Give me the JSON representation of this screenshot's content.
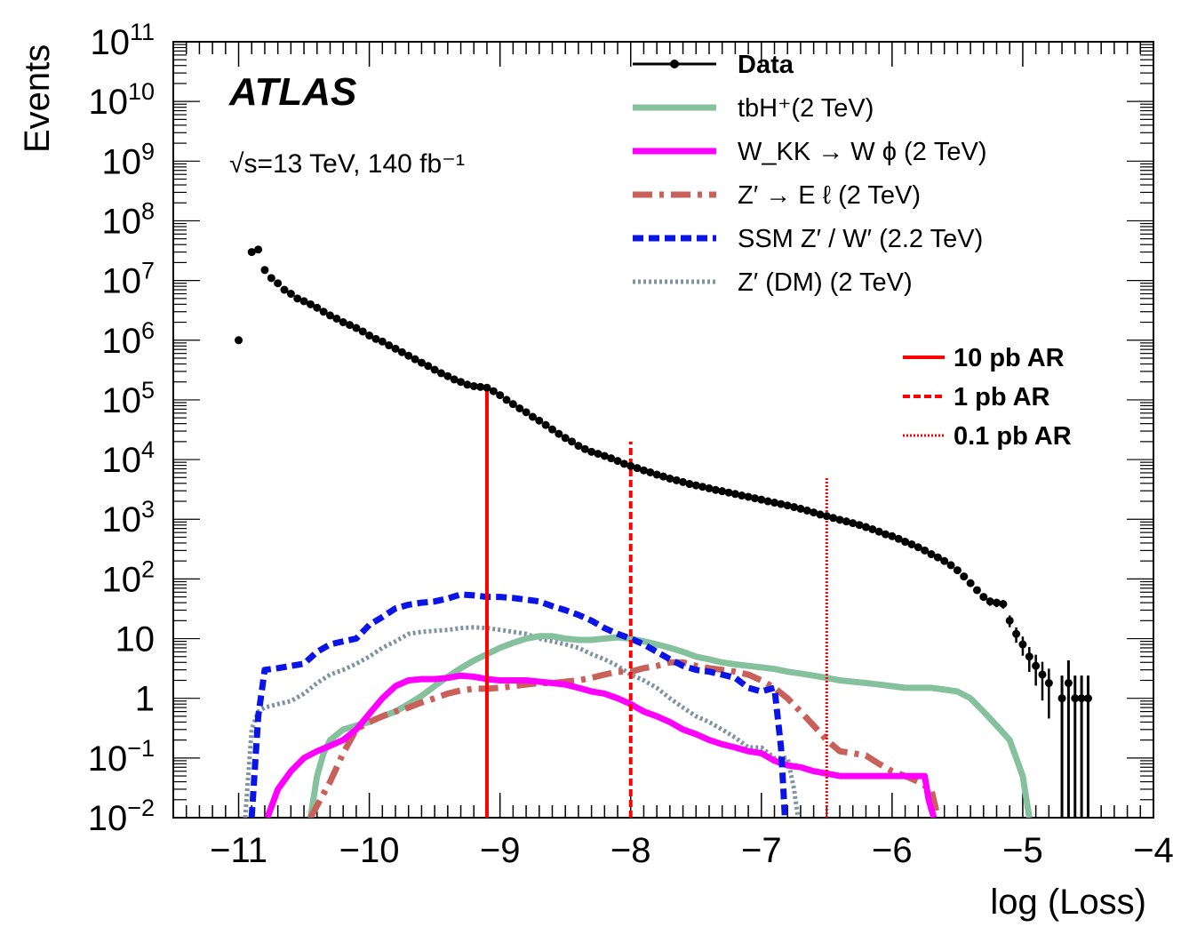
{
  "chart_data": {
    "type": "line",
    "experiment": "ATLAS",
    "lumi_text": "√s=13 TeV,  140 fb⁻¹",
    "xlabel": "log (Loss)",
    "ylabel": "Events",
    "xlim": [
      -11.5,
      -4
    ],
    "ylim": [
      0.01,
      100000000000
    ],
    "yscale": "log",
    "x_tick_labels": [
      "−11",
      "−10",
      "−9",
      "−8",
      "−7",
      "−6",
      "−5",
      "−4"
    ],
    "y_tick_labels": [
      {
        "base": "10",
        "exp": "−2",
        "v": 0.01
      },
      {
        "base": "10",
        "exp": "−1",
        "v": 0.1
      },
      {
        "base": "1",
        "exp": "",
        "v": 1
      },
      {
        "base": "10",
        "exp": "",
        "v": 10
      },
      {
        "base": "10",
        "exp": "2",
        "v": 100
      },
      {
        "base": "10",
        "exp": "3",
        "v": 1000
      },
      {
        "base": "10",
        "exp": "4",
        "v": 10000
      },
      {
        "base": "10",
        "exp": "5",
        "v": 100000
      },
      {
        "base": "10",
        "exp": "6",
        "v": 1000000
      },
      {
        "base": "10",
        "exp": "7",
        "v": 10000000
      },
      {
        "base": "10",
        "exp": "8",
        "v": 100000000
      },
      {
        "base": "10",
        "exp": "9",
        "v": 1000000000
      },
      {
        "base": "10",
        "exp": "10",
        "v": 10000000000
      },
      {
        "base": "10",
        "exp": "11",
        "v": 100000000000
      }
    ],
    "legend_position": "top-right",
    "legend": [
      {
        "key": "data",
        "label": "Data",
        "style": "data",
        "color": "#000000"
      },
      {
        "key": "tbh",
        "label": "tbH⁺(2 TeV)",
        "style": "solid",
        "color": "#86c19e"
      },
      {
        "key": "wkk",
        "label": "W_KK → W ϕ (2 TeV)",
        "style": "solid",
        "color": "#ff00ff"
      },
      {
        "key": "zel",
        "label": "Z′ → E ℓ (2 TeV)",
        "style": "dashdot",
        "color": "#c8615a"
      },
      {
        "key": "ssm",
        "label": "SSM Z′ / W′ (2.2 TeV)",
        "style": "dashed",
        "color": "#0a14e6"
      },
      {
        "key": "zdm",
        "label": "Z′ (DM) (2 TeV)",
        "style": "dotted",
        "color": "#7f93a3"
      }
    ],
    "ar_legend": [
      {
        "label": "10 pb AR",
        "style": "solid",
        "color": "#ff0000"
      },
      {
        "label": "1 pb AR",
        "style": "dashed",
        "color": "#ff0000"
      },
      {
        "label": "0.1 pb AR",
        "style": "dotted",
        "color": "#ff0000"
      }
    ],
    "ar_lines": [
      {
        "x": -9.1,
        "top": 180000,
        "style": "solid"
      },
      {
        "x": -8.0,
        "top": 20000,
        "style": "dashed"
      },
      {
        "x": -6.5,
        "top": 5000,
        "style": "dotted"
      }
    ],
    "data_points": {
      "x": [
        -11.0,
        -10.9,
        -10.85,
        -10.8,
        -10.75,
        -10.7,
        -10.65,
        -10.6,
        -10.55,
        -10.5,
        -10.45,
        -10.4,
        -10.35,
        -10.3,
        -10.25,
        -10.2,
        -10.15,
        -10.1,
        -10.05,
        -10.0,
        -9.95,
        -9.9,
        -9.85,
        -9.8,
        -9.75,
        -9.7,
        -9.65,
        -9.6,
        -9.55,
        -9.5,
        -9.45,
        -9.4,
        -9.35,
        -9.3,
        -9.25,
        -9.2,
        -9.15,
        -9.1,
        -9.05,
        -9.0,
        -8.95,
        -8.9,
        -8.85,
        -8.8,
        -8.75,
        -8.7,
        -8.65,
        -8.6,
        -8.55,
        -8.5,
        -8.45,
        -8.4,
        -8.35,
        -8.3,
        -8.25,
        -8.2,
        -8.15,
        -8.1,
        -8.05,
        -8.0,
        -7.95,
        -7.9,
        -7.85,
        -7.8,
        -7.75,
        -7.7,
        -7.65,
        -7.6,
        -7.55,
        -7.5,
        -7.45,
        -7.4,
        -7.35,
        -7.3,
        -7.25,
        -7.2,
        -7.15,
        -7.1,
        -7.05,
        -7.0,
        -6.95,
        -6.9,
        -6.85,
        -6.8,
        -6.75,
        -6.7,
        -6.65,
        -6.6,
        -6.55,
        -6.5,
        -6.45,
        -6.4,
        -6.35,
        -6.3,
        -6.25,
        -6.2,
        -6.15,
        -6.1,
        -6.05,
        -6.0,
        -5.95,
        -5.9,
        -5.85,
        -5.8,
        -5.75,
        -5.7,
        -5.65,
        -5.6,
        -5.55,
        -5.5,
        -5.45,
        -5.4,
        -5.35,
        -5.3,
        -5.25,
        -5.2,
        -5.15,
        -5.1,
        -5.05,
        -5.0,
        -4.95,
        -4.9,
        -4.85,
        -4.8
      ],
      "y": [
        1000000,
        30000000,
        33000000,
        15000000,
        11000000,
        9000000,
        7000000,
        6000000,
        5000000,
        4500000,
        4000000,
        3500000,
        3000000,
        2600000,
        2300000,
        2000000,
        1800000,
        1600000,
        1400000,
        1200000,
        1050000,
        950000,
        820000,
        720000,
        630000,
        550000,
        480000,
        420000,
        370000,
        320000,
        280000,
        250000,
        220000,
        200000,
        180000,
        170000,
        165000,
        160000,
        140000,
        120000,
        100000,
        85000,
        72000,
        62000,
        52000,
        45000,
        38000,
        32000,
        27000,
        23000,
        20000,
        17000,
        15000,
        13500,
        12500,
        11500,
        10500,
        9500,
        8500,
        7800,
        7200,
        6600,
        6100,
        5600,
        5200,
        4800,
        4500,
        4200,
        3900,
        3700,
        3500,
        3300,
        3100,
        2950,
        2800,
        2650,
        2500,
        2380,
        2250,
        2130,
        2000,
        1900,
        1800,
        1700,
        1600,
        1500,
        1400,
        1300,
        1200,
        1130,
        1050,
        980,
        920,
        860,
        800,
        740,
        680,
        620,
        560,
        520,
        470,
        420,
        380,
        340,
        300,
        260,
        230,
        200,
        170,
        140,
        110,
        85,
        65,
        50,
        42,
        40,
        38,
        20,
        12,
        8,
        5,
        3.5,
        2.5,
        1.8
      ]
    },
    "data_low_points": {
      "x": [
        -4.7,
        -4.65,
        -4.6,
        -4.55,
        -4.5
      ],
      "y": [
        1,
        1.8,
        1,
        1,
        1
      ]
    },
    "series": [
      {
        "key": "tbh",
        "x": [
          -10.45,
          -10.4,
          -10.35,
          -10.3,
          -10.2,
          -10.1,
          -10.0,
          -9.9,
          -9.8,
          -9.7,
          -9.6,
          -9.5,
          -9.4,
          -9.3,
          -9.2,
          -9.1,
          -9.0,
          -8.9,
          -8.8,
          -8.7,
          -8.6,
          -8.5,
          -8.4,
          -8.3,
          -8.2,
          -8.1,
          -8.0,
          -7.9,
          -7.8,
          -7.7,
          -7.6,
          -7.5,
          -7.4,
          -7.3,
          -7.2,
          -7.1,
          -7.0,
          -6.9,
          -6.8,
          -6.7,
          -6.6,
          -6.5,
          -6.4,
          -6.3,
          -6.2,
          -6.1,
          -6.0,
          -5.9,
          -5.8,
          -5.7,
          -5.6,
          -5.5,
          -5.4,
          -5.3,
          -5.2,
          -5.1,
          -5.0,
          -4.95
        ],
        "y": [
          0.01,
          0.05,
          0.12,
          0.2,
          0.3,
          0.35,
          0.4,
          0.5,
          0.6,
          0.8,
          1.1,
          1.6,
          2.3,
          3.2,
          4.3,
          5.5,
          7,
          8.5,
          10,
          11,
          11,
          10,
          9.5,
          9.5,
          10,
          10.5,
          10,
          9,
          8,
          7,
          6,
          5,
          4.5,
          4,
          3.7,
          3.5,
          3.3,
          3.1,
          2.8,
          2.6,
          2.4,
          2.2,
          2.0,
          1.9,
          1.8,
          1.7,
          1.6,
          1.5,
          1.5,
          1.5,
          1.4,
          1.3,
          1.0,
          0.6,
          0.35,
          0.2,
          0.05,
          0.01
        ]
      },
      {
        "key": "wkk",
        "x": [
          -10.78,
          -10.7,
          -10.6,
          -10.5,
          -10.4,
          -10.3,
          -10.2,
          -10.1,
          -10.0,
          -9.9,
          -9.8,
          -9.7,
          -9.6,
          -9.5,
          -9.4,
          -9.3,
          -9.2,
          -9.1,
          -9.0,
          -8.9,
          -8.8,
          -8.7,
          -8.6,
          -8.5,
          -8.4,
          -8.3,
          -8.2,
          -8.1,
          -8.0,
          -7.9,
          -7.8,
          -7.7,
          -7.6,
          -7.5,
          -7.4,
          -7.3,
          -7.2,
          -7.1,
          -7.0,
          -6.9,
          -6.8,
          -6.7,
          -6.6,
          -6.5,
          -6.4,
          -6.3,
          -6.2,
          -6.1,
          -6.0,
          -5.9,
          -5.8,
          -5.75,
          -5.72,
          -5.68
        ],
        "y": [
          0.01,
          0.03,
          0.06,
          0.1,
          0.13,
          0.16,
          0.2,
          0.3,
          0.55,
          1.0,
          1.6,
          2.0,
          2.1,
          2.1,
          2.2,
          2.4,
          2.3,
          2.1,
          2.0,
          2.0,
          2.0,
          1.9,
          1.8,
          1.7,
          1.5,
          1.3,
          1.2,
          1.0,
          0.8,
          0.6,
          0.5,
          0.4,
          0.3,
          0.25,
          0.2,
          0.17,
          0.15,
          0.13,
          0.12,
          0.09,
          0.075,
          0.07,
          0.06,
          0.055,
          0.05,
          0.05,
          0.05,
          0.05,
          0.05,
          0.05,
          0.05,
          0.05,
          0.02,
          0.01
        ]
      },
      {
        "key": "zel",
        "x": [
          -10.45,
          -10.3,
          -10.2,
          -10.1,
          -10.0,
          -9.9,
          -9.8,
          -9.7,
          -9.6,
          -9.5,
          -9.4,
          -9.3,
          -9.2,
          -9.1,
          -9.0,
          -8.9,
          -8.8,
          -8.7,
          -8.6,
          -8.5,
          -8.4,
          -8.3,
          -8.2,
          -8.1,
          -8.0,
          -7.9,
          -7.8,
          -7.7,
          -7.6,
          -7.5,
          -7.4,
          -7.3,
          -7.2,
          -7.1,
          -7.0,
          -6.9,
          -6.8,
          -6.7,
          -6.6,
          -6.5,
          -6.4,
          -6.3,
          -6.2,
          -6.1,
          -6.0,
          -5.9,
          -5.8,
          -5.7,
          -5.65
        ],
        "y": [
          0.01,
          0.04,
          0.12,
          0.3,
          0.4,
          0.5,
          0.6,
          0.7,
          0.85,
          1.0,
          1.2,
          1.35,
          1.45,
          1.45,
          1.5,
          1.6,
          1.7,
          1.8,
          1.8,
          1.9,
          2.0,
          2.2,
          2.5,
          2.8,
          2.8,
          3.2,
          3.5,
          4.0,
          4.0,
          3.5,
          3.2,
          3.0,
          2.8,
          2.5,
          2.0,
          1.5,
          1.0,
          0.6,
          0.35,
          0.2,
          0.13,
          0.12,
          0.11,
          0.08,
          0.06,
          0.05,
          0.04,
          0.03,
          0.01
        ]
      },
      {
        "key": "ssm",
        "x": [
          -10.9,
          -10.85,
          -10.8,
          -10.7,
          -10.6,
          -10.5,
          -10.4,
          -10.3,
          -10.2,
          -10.1,
          -10.0,
          -9.9,
          -9.8,
          -9.7,
          -9.6,
          -9.5,
          -9.4,
          -9.3,
          -9.2,
          -9.1,
          -9.0,
          -8.9,
          -8.8,
          -8.7,
          -8.6,
          -8.5,
          -8.4,
          -8.3,
          -8.2,
          -8.1,
          -8.0,
          -7.9,
          -7.8,
          -7.7,
          -7.6,
          -7.5,
          -7.4,
          -7.3,
          -7.2,
          -7.1,
          -7.0,
          -6.9,
          -6.85,
          -6.82
        ],
        "y": [
          0.01,
          0.5,
          3.0,
          3.2,
          3.5,
          3.8,
          6,
          8,
          9,
          10,
          17,
          23,
          32,
          37,
          40,
          42,
          47,
          55,
          53,
          50,
          50,
          48,
          45,
          42,
          35,
          30,
          25,
          20,
          15,
          12,
          10,
          8,
          6,
          4.5,
          3.5,
          3.0,
          2.8,
          2.5,
          2.2,
          1.5,
          1.3,
          1.5,
          0.15,
          0.01
        ]
      },
      {
        "key": "zdm",
        "x": [
          -10.95,
          -10.9,
          -10.85,
          -10.8,
          -10.7,
          -10.6,
          -10.5,
          -10.4,
          -10.3,
          -10.2,
          -10.1,
          -10.0,
          -9.9,
          -9.8,
          -9.7,
          -9.6,
          -9.5,
          -9.4,
          -9.3,
          -9.2,
          -9.1,
          -9.0,
          -8.9,
          -8.8,
          -8.7,
          -8.6,
          -8.5,
          -8.4,
          -8.3,
          -8.2,
          -8.1,
          -8.0,
          -7.9,
          -7.8,
          -7.7,
          -7.6,
          -7.5,
          -7.4,
          -7.3,
          -7.2,
          -7.1,
          -7.0,
          -6.9,
          -6.8,
          -6.75,
          -6.72
        ],
        "y": [
          0.01,
          0.3,
          0.6,
          0.7,
          0.8,
          0.9,
          1.2,
          1.8,
          2.5,
          3,
          3.8,
          5,
          7,
          9,
          12,
          13,
          13.5,
          14,
          15,
          15.5,
          15,
          14,
          13,
          12,
          10,
          9,
          8,
          7,
          5.5,
          4.5,
          3.5,
          2.5,
          2.0,
          1.5,
          1.0,
          0.7,
          0.5,
          0.4,
          0.3,
          0.22,
          0.15,
          0.15,
          0.1,
          0.1,
          0.03,
          0.01
        ]
      }
    ]
  }
}
